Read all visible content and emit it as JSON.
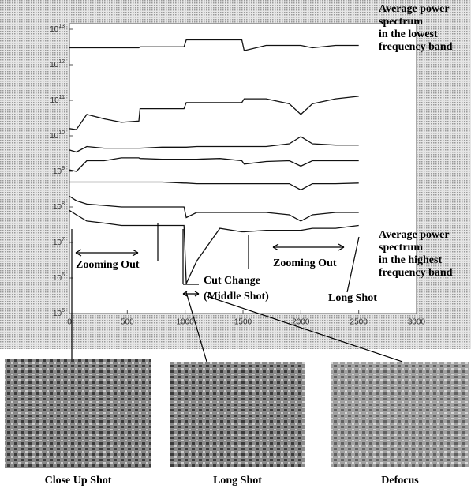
{
  "chart_data": {
    "type": "line",
    "log_y": true,
    "color": "#111111",
    "xlim": [
      0,
      3000
    ],
    "xticks": [
      0,
      500,
      1000,
      1500,
      2000,
      2500,
      3000
    ],
    "ylim": [
      100000,
      10000000000000
    ],
    "yticks": [
      {
        "value": 100000,
        "label": "10",
        "exponent": "5"
      },
      {
        "value": 1000000,
        "label": "10",
        "exponent": "6"
      },
      {
        "value": 10000000,
        "label": "10",
        "exponent": "7"
      },
      {
        "value": 100000000,
        "label": "10",
        "exponent": "8"
      },
      {
        "value": 1000000000,
        "label": "10",
        "exponent": "9"
      },
      {
        "value": 10000000000,
        "label": "10",
        "exponent": "10"
      },
      {
        "value": 100000000000,
        "label": "10",
        "exponent": "11"
      },
      {
        "value": 1000000000000,
        "label": "10",
        "exponent": "12"
      },
      {
        "value": 10000000000000,
        "label": "10",
        "exponent": "13"
      }
    ],
    "x": [
      0,
      60,
      150,
      300,
      450,
      600,
      610,
      800,
      990,
      1010,
      1100,
      1300,
      1490,
      1510,
      1700,
      1900,
      2000,
      2100,
      2300,
      2500
    ],
    "series": [
      {
        "values": [
          3000000000000.0,
          3000000000000.0,
          3000000000000.0,
          3000000000000.0,
          3000000000000.0,
          3000000000000.0,
          3200000000000.0,
          3200000000000.0,
          3200000000000.0,
          5000000000000.0,
          5000000000000.0,
          5000000000000.0,
          5000000000000.0,
          2500000000000.0,
          3500000000000.0,
          3500000000000.0,
          3500000000000.0,
          3000000000000.0,
          3500000000000.0,
          3500000000000.0
        ]
      },
      {
        "values": [
          16000000000.0,
          15000000000.0,
          40000000000.0,
          30000000000.0,
          24000000000.0,
          26000000000.0,
          58000000000.0,
          58000000000.0,
          58000000000.0,
          86000000000.0,
          86000000000.0,
          86000000000.0,
          86000000000.0,
          110000000000.0,
          110000000000.0,
          80000000000.0,
          40000000000.0,
          80000000000.0,
          110000000000.0,
          130000000000.0
        ]
      },
      {
        "values": [
          4000000000.0,
          3500000000.0,
          5000000000.0,
          4500000000.0,
          4500000000.0,
          4500000000.0,
          4500000000.0,
          4800000000.0,
          4800000000.0,
          4800000000.0,
          5000000000.0,
          5000000000.0,
          5000000000.0,
          5000000000.0,
          5000000000.0,
          6000000000.0,
          9500000000.0,
          6000000000.0,
          5500000000.0,
          5500000000.0
        ]
      },
      {
        "values": [
          1100000000.0,
          1000000000.0,
          2000000000.0,
          2000000000.0,
          2400000000.0,
          2400000000.0,
          2300000000.0,
          2200000000.0,
          2200000000.0,
          2200000000.0,
          2200000000.0,
          2300000000.0,
          2000000000.0,
          1600000000.0,
          1900000000.0,
          2000000000.0,
          1400000000.0,
          2000000000.0,
          2000000000.0,
          2000000000.0
        ]
      },
      {
        "values": [
          500000000.0,
          500000000.0,
          500000000.0,
          500000000.0,
          500000000.0,
          500000000.0,
          500000000.0,
          500000000.0,
          470000000.0,
          470000000.0,
          450000000.0,
          450000000.0,
          450000000.0,
          450000000.0,
          450000000.0,
          450000000.0,
          300000000.0,
          450000000.0,
          450000000.0,
          470000000.0
        ]
      },
      {
        "values": [
          200000000.0,
          150000000.0,
          120000000.0,
          110000000.0,
          100000000.0,
          100000000.0,
          100000000.0,
          100000000.0,
          100000000.0,
          50000000.0,
          70000000.0,
          70000000.0,
          70000000.0,
          70000000.0,
          70000000.0,
          60000000.0,
          40000000.0,
          60000000.0,
          70000000.0,
          70000000.0
        ]
      },
      {
        "values": [
          80000000.0,
          60000000.0,
          40000000.0,
          35000000.0,
          30000000.0,
          30000000.0,
          30000000.0,
          30000000.0,
          30000000.0,
          700000.0,
          3000000.0,
          25000000.0,
          20000000.0,
          20000000.0,
          22000000.0,
          22000000.0,
          22000000.0,
          25000000.0,
          25000000.0,
          30000000.0
        ]
      }
    ],
    "annotations": [
      {
        "lines": [
          "Average power",
          "spectrum",
          "in the lowest",
          "frequency band"
        ]
      },
      {
        "lines": [
          "Average power",
          "spectrum",
          "in the highest",
          "frequency band"
        ]
      },
      {
        "lines": [
          "Zooming Out"
        ]
      },
      {
        "lines": [
          "Zooming Out"
        ]
      },
      {
        "lines": [
          "Cut Change",
          "(Middle Shot)"
        ]
      },
      {
        "lines": [
          "Long Shot"
        ]
      }
    ]
  },
  "frames": [
    {
      "caption": "Close Up Shot"
    },
    {
      "caption": "Long Shot"
    },
    {
      "caption": "Defocus"
    }
  ]
}
